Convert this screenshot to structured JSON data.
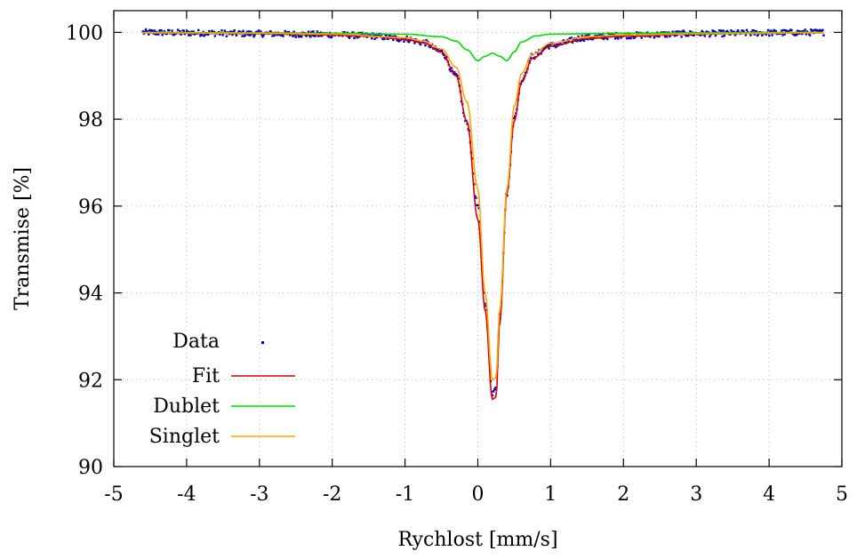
{
  "chart_data": {
    "type": "scatter",
    "title": "",
    "xlabel": "Rychlost [mm/s]",
    "ylabel": "Transmise [%]",
    "xlim": [
      -5,
      5
    ],
    "ylim": [
      90,
      100.5
    ],
    "xticks": [
      -5,
      -4,
      -3,
      -2,
      -1,
      0,
      1,
      2,
      3,
      4,
      5
    ],
    "xtick_labels": [
      "-5",
      "-4",
      "-3",
      "-2",
      "-1",
      "0",
      "1",
      "2",
      "3",
      "4",
      "5"
    ],
    "yticks": [
      90,
      92,
      94,
      96,
      98,
      100
    ],
    "ytick_labels": [
      "90",
      "92",
      "94",
      "96",
      "98",
      "100"
    ],
    "grid": true,
    "legend_position": "bottom-left",
    "legend": [
      "Data",
      "Fit",
      "Dublet",
      "Singlet"
    ],
    "series": [
      {
        "name": "Data",
        "kind": "points",
        "color": "#0000cc",
        "x_range": [
          -4.6,
          4.75
        ],
        "x": [
          -4.6,
          -4.0,
          -3.0,
          -2.0,
          -1.5,
          -1.0,
          -0.75,
          -0.5,
          -0.3,
          -0.15,
          0.0,
          0.1,
          0.2,
          0.25,
          0.3,
          0.4,
          0.5,
          0.6,
          0.75,
          1.0,
          1.5,
          2.0,
          3.0,
          4.0,
          4.75
        ],
        "y": [
          100.0,
          99.99,
          99.97,
          99.95,
          99.92,
          99.85,
          99.77,
          99.55,
          99.0,
          97.9,
          96.0,
          93.8,
          91.7,
          91.8,
          93.5,
          96.3,
          98.0,
          98.9,
          99.45,
          99.7,
          99.88,
          99.93,
          99.97,
          99.99,
          100.0
        ]
      },
      {
        "name": "Fit",
        "kind": "line",
        "color": "#dd0000",
        "x": [
          -4.6,
          -4.0,
          -3.0,
          -2.0,
          -1.5,
          -1.0,
          -0.75,
          -0.5,
          -0.3,
          -0.15,
          0.0,
          0.1,
          0.2,
          0.25,
          0.3,
          0.4,
          0.5,
          0.6,
          0.75,
          1.0,
          1.5,
          2.0,
          3.0,
          4.0,
          4.75
        ],
        "y": [
          99.99,
          99.98,
          99.97,
          99.94,
          99.91,
          99.84,
          99.76,
          99.55,
          99.0,
          97.95,
          95.7,
          93.6,
          91.55,
          91.6,
          93.3,
          96.3,
          97.95,
          98.85,
          99.4,
          99.68,
          99.86,
          99.91,
          99.96,
          99.98,
          99.99
        ]
      },
      {
        "name": "Dublet",
        "kind": "line",
        "color": "#00dd00",
        "x": [
          -4.6,
          -3.0,
          -2.0,
          -1.0,
          -0.5,
          -0.3,
          -0.15,
          0.0,
          0.1,
          0.2,
          0.3,
          0.4,
          0.5,
          0.6,
          0.8,
          1.0,
          2.0,
          3.0,
          4.75
        ],
        "y": [
          100.0,
          99.99,
          99.98,
          99.96,
          99.9,
          99.8,
          99.6,
          99.35,
          99.45,
          99.52,
          99.45,
          99.35,
          99.55,
          99.78,
          99.92,
          99.96,
          99.98,
          99.99,
          100.0
        ]
      },
      {
        "name": "Singlet",
        "kind": "line",
        "color": "#ffa500",
        "x": [
          -4.6,
          -3.0,
          -2.0,
          -1.0,
          -0.75,
          -0.5,
          -0.3,
          -0.15,
          0.0,
          0.1,
          0.2,
          0.25,
          0.3,
          0.4,
          0.5,
          0.6,
          0.75,
          1.0,
          1.5,
          2.0,
          3.0,
          4.75
        ],
        "y": [
          99.99,
          99.98,
          99.96,
          99.88,
          99.8,
          99.62,
          99.2,
          98.4,
          96.4,
          94.0,
          92.0,
          92.05,
          93.6,
          96.4,
          98.3,
          99.05,
          99.5,
          99.75,
          99.9,
          99.94,
          99.97,
          99.99
        ]
      }
    ]
  }
}
